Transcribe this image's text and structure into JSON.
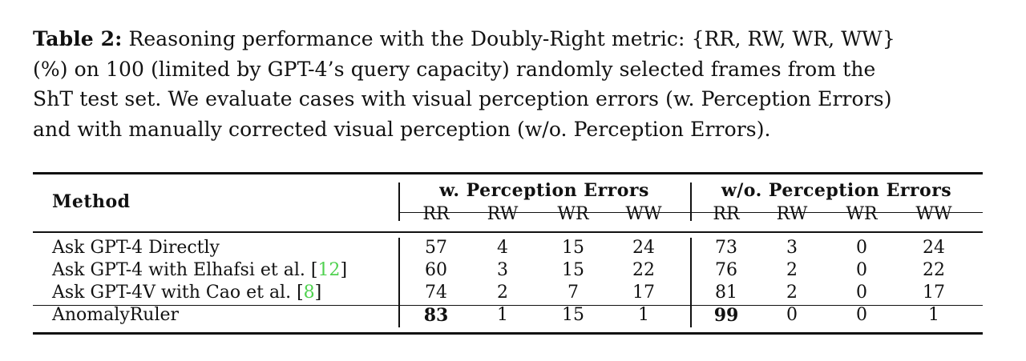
{
  "caption": {
    "label": "Table 2:",
    "line1": "Reasoning performance with the Doubly-Right metric: {RR, RW, WR, WW}",
    "line2": "(%) on 100 (limited by GPT-4’s query capacity) randomly selected frames from the",
    "line3": "ShT test set. We evaluate cases with visual perception errors (w. Perception Errors)",
    "line4": "and with manually corrected visual perception (w/o. Perception Errors)."
  },
  "table": {
    "method_header": "Method",
    "group1": "w. Perception Errors",
    "group2": "w/o. Perception Errors",
    "subcols": [
      "RR",
      "RW",
      "WR",
      "WW",
      "RR",
      "RW",
      "WR",
      "WW"
    ],
    "rows": [
      {
        "method": "Ask GPT-4 Directly",
        "cite": "",
        "cells": [
          "57",
          "4",
          "15",
          "24",
          "73",
          "3",
          "0",
          "24"
        ]
      },
      {
        "method": "Ask GPT-4 with Elhafsi et al. [",
        "cite": "12",
        "after": "]",
        "cells": [
          "60",
          "3",
          "15",
          "22",
          "76",
          "2",
          "0",
          "22"
        ]
      },
      {
        "method": "Ask GPT-4V with Cao et al. [",
        "cite": "8",
        "after": "]",
        "cells": [
          "74",
          "2",
          "7",
          "17",
          "81",
          "2",
          "0",
          "17"
        ]
      },
      {
        "method": "AnomalyRuler",
        "cite": "",
        "cells": [
          "83",
          "1",
          "15",
          "1",
          "99",
          "0",
          "0",
          "1"
        ],
        "bold": [
          0,
          4
        ]
      }
    ]
  }
}
